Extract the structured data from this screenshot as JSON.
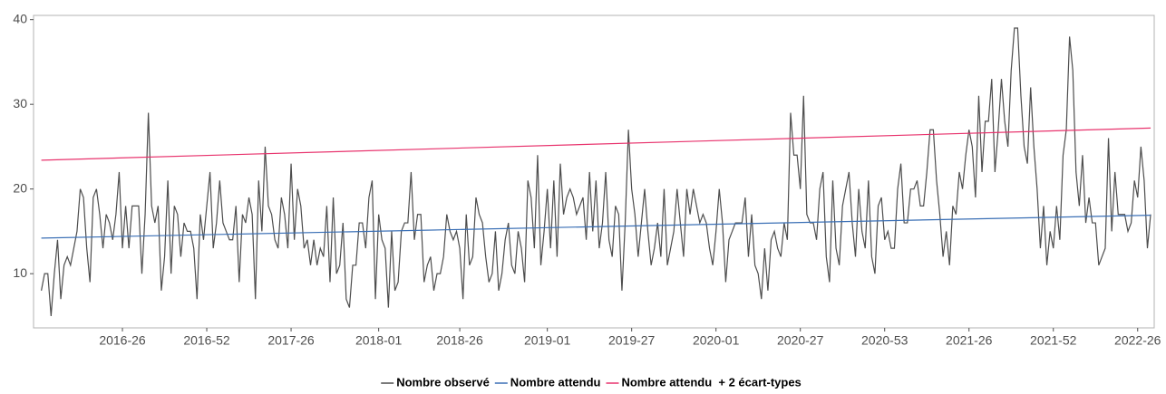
{
  "chart_data": {
    "type": "line",
    "xlim": [
      -2.4,
      343.1
    ],
    "ylim": [
      3.6,
      40.5
    ],
    "yticks": [
      10,
      20,
      30,
      40
    ],
    "xticks": [
      {
        "value": 25,
        "label": "2016-26"
      },
      {
        "value": 51,
        "label": "2016-52"
      },
      {
        "value": 77,
        "label": "2017-26"
      },
      {
        "value": 104,
        "label": "2018-01"
      },
      {
        "value": 129,
        "label": "2018-26"
      },
      {
        "value": 156,
        "label": "2019-01"
      },
      {
        "value": 182,
        "label": "2019-27"
      },
      {
        "value": 208,
        "label": "2020-01"
      },
      {
        "value": 234,
        "label": "2020-27"
      },
      {
        "value": 260,
        "label": "2020-53"
      },
      {
        "value": 286,
        "label": "2021-26"
      },
      {
        "value": 312,
        "label": "2021-52"
      },
      {
        "value": 338,
        "label": "2022-26"
      }
    ],
    "grid": false,
    "legend": "bottom",
    "series": [
      {
        "name": "Nombre observé",
        "color": "#4d4d4d",
        "x": [
          0,
          1,
          2,
          3,
          4,
          5,
          6,
          7,
          8,
          9,
          10,
          11,
          12,
          13,
          14,
          15,
          16,
          17,
          18,
          19,
          20,
          21,
          22,
          23,
          24,
          25,
          26,
          27,
          28,
          29,
          30,
          31,
          32,
          33,
          34,
          35,
          36,
          37,
          38,
          39,
          40,
          41,
          42,
          43,
          44,
          45,
          46,
          47,
          48,
          49,
          50,
          51,
          52,
          53,
          54,
          55,
          56,
          57,
          58,
          59,
          60,
          61,
          62,
          63,
          64,
          65,
          66,
          67,
          68,
          69,
          70,
          71,
          72,
          73,
          74,
          75,
          76,
          77,
          78,
          79,
          80,
          81,
          82,
          83,
          84,
          85,
          86,
          87,
          88,
          89,
          90,
          91,
          92,
          93,
          94,
          95,
          96,
          97,
          98,
          99,
          100,
          101,
          102,
          103,
          104,
          105,
          106,
          107,
          108,
          109,
          110,
          111,
          112,
          113,
          114,
          115,
          116,
          117,
          118,
          119,
          120,
          121,
          122,
          123,
          124,
          125,
          126,
          127,
          128,
          129,
          130,
          131,
          132,
          133,
          134,
          135,
          136,
          137,
          138,
          139,
          140,
          141,
          142,
          143,
          144,
          145,
          146,
          147,
          148,
          149,
          150,
          151,
          152,
          153,
          154,
          155,
          156,
          157,
          158,
          159,
          160,
          161,
          162,
          163,
          164,
          165,
          166,
          167,
          168,
          169,
          170,
          171,
          172,
          173,
          174,
          175,
          176,
          177,
          178,
          179,
          180,
          181,
          182,
          183,
          184,
          185,
          186,
          187,
          188,
          189,
          190,
          191,
          192,
          193,
          194,
          195,
          196,
          197,
          198,
          199,
          200,
          201,
          202,
          203,
          204,
          205,
          206,
          207,
          208,
          209,
          210,
          211,
          212,
          213,
          214,
          215,
          216,
          217,
          218,
          219,
          220,
          221,
          222,
          223,
          224,
          225,
          226,
          227,
          228,
          229,
          230,
          231,
          232,
          233,
          234,
          235,
          236,
          237,
          238,
          239,
          240,
          241,
          242,
          243,
          244,
          245,
          246,
          247,
          248,
          249,
          250,
          251,
          252,
          253,
          254,
          255,
          256,
          257,
          258,
          259,
          260,
          261,
          262,
          263,
          264,
          265,
          266,
          267,
          268,
          269,
          270,
          271,
          272,
          273,
          274,
          275,
          276,
          277,
          278,
          279,
          280,
          281,
          282,
          283,
          284,
          285,
          286,
          287,
          288,
          289,
          290,
          291,
          292,
          293,
          294,
          295,
          296,
          297,
          298,
          299,
          300,
          301,
          302,
          303,
          304,
          305,
          306,
          307,
          308,
          309,
          310,
          311,
          312,
          313,
          314,
          315,
          316,
          317,
          318,
          319,
          320,
          321,
          322,
          323,
          324,
          325,
          326,
          327,
          328,
          329,
          330,
          331,
          332,
          333,
          334,
          335,
          336,
          337,
          338,
          339,
          340,
          341,
          342
        ],
        "values": [
          8,
          10,
          10,
          5,
          10,
          14,
          7,
          11,
          12,
          11,
          13,
          15,
          20,
          19,
          13,
          9,
          19,
          20,
          17,
          13,
          17,
          16,
          14,
          17,
          22,
          13,
          18,
          13,
          18,
          18,
          18,
          10,
          17,
          29,
          18,
          16,
          18,
          8,
          12,
          21,
          10,
          18,
          17,
          12,
          16,
          15,
          15,
          13,
          7,
          17,
          14,
          18,
          22,
          13,
          16,
          21,
          16,
          15,
          14,
          14,
          18,
          9,
          17,
          16,
          19,
          17,
          7,
          21,
          15,
          25,
          18,
          17,
          14,
          13,
          19,
          17,
          13,
          23,
          14,
          20,
          18,
          13,
          14,
          11,
          14,
          11,
          13,
          12,
          18,
          9,
          19,
          10,
          11,
          16,
          7,
          6,
          11,
          11,
          16,
          16,
          13,
          19,
          21,
          7,
          17,
          14,
          13,
          6,
          15,
          8,
          9,
          15,
          16,
          16,
          22,
          14,
          17,
          17,
          9,
          11,
          12,
          8,
          10,
          10,
          12,
          17,
          15,
          14,
          15,
          13,
          7,
          17,
          11,
          12,
          19,
          17,
          16,
          12,
          9,
          10,
          15,
          8,
          10,
          14,
          16,
          11,
          10,
          15,
          13,
          9,
          21,
          19,
          13,
          24,
          11,
          15,
          20,
          13,
          21,
          12,
          23,
          17,
          19,
          20,
          19,
          17,
          18,
          19,
          14,
          22,
          15,
          21,
          13,
          16,
          22,
          14,
          12,
          18,
          17,
          8,
          16,
          27,
          20,
          17,
          12,
          16,
          20,
          15,
          11,
          13,
          16,
          12,
          20,
          11,
          13,
          15,
          20,
          16,
          12,
          20,
          17,
          20,
          18,
          16,
          17,
          16,
          13,
          11,
          15,
          20,
          16,
          9,
          14,
          15,
          16,
          16,
          16,
          19,
          12,
          17,
          11,
          10,
          7,
          13,
          8,
          14,
          15,
          13,
          12,
          16,
          14,
          29,
          24,
          24,
          20,
          31,
          17,
          16,
          16,
          14,
          20,
          22,
          12,
          9,
          21,
          13,
          11,
          18,
          20,
          22,
          16,
          12,
          20,
          15,
          13,
          21,
          12,
          10,
          18,
          19,
          14,
          15,
          13,
          13,
          20,
          23,
          16,
          16,
          20,
          20,
          21,
          18,
          18,
          22,
          27,
          27,
          21,
          17,
          12,
          15,
          11,
          18,
          17,
          22,
          20,
          24,
          27,
          25,
          19,
          31,
          22,
          28,
          28,
          33,
          22,
          27,
          33,
          28,
          25,
          34,
          39,
          39,
          31,
          25,
          23,
          32,
          25,
          20,
          13,
          18,
          11,
          15,
          13,
          18,
          14,
          24,
          27,
          38,
          34,
          22,
          18,
          24,
          16,
          19,
          16,
          16,
          11,
          12,
          13,
          26,
          15,
          22,
          17,
          17,
          17,
          15,
          16,
          21,
          19,
          25,
          21,
          13,
          17
        ]
      },
      {
        "name": "Nombre attendu",
        "color": "#3a6fb5",
        "x": [
          0,
          342
        ],
        "values": [
          14.2,
          16.9
        ]
      },
      {
        "name": "Nombre attendu  + 2 écart-types",
        "color": "#e8336d",
        "x": [
          0,
          342
        ],
        "values": [
          23.4,
          27.2
        ]
      }
    ]
  }
}
